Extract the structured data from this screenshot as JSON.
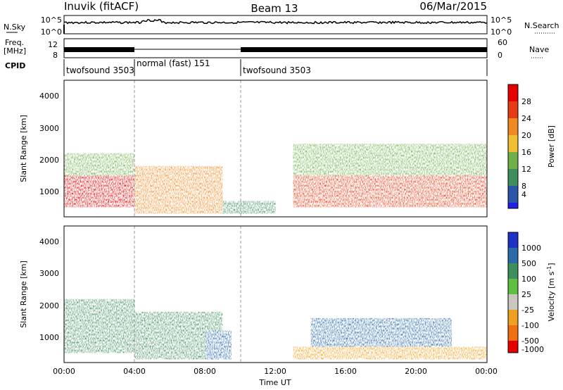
{
  "header": {
    "site": "Inuvik (fitACF)",
    "beam": "Beam 13",
    "date": "06/Mar/2015"
  },
  "top_panels": {
    "nsky_label": "N.Sky",
    "nsearch_label": "N.Search",
    "nsky_ticks": [
      "10^5",
      "10^0"
    ],
    "nsearch_ticks": [
      "10^5",
      "10^0"
    ],
    "freq_label_1": "Freq.",
    "freq_label_2": "[MHz]",
    "freq_ticks": [
      "12",
      "8"
    ],
    "nave_label": "Nave",
    "nave_ticks": [
      "60",
      "0"
    ],
    "cpid_label": "CPID",
    "cpid_segments": [
      {
        "label": "twofsound 3503",
        "start_hour": 0,
        "end_hour": 4
      },
      {
        "label": "normal (fast) 151",
        "start_hour": 4,
        "end_hour": 10
      },
      {
        "label": "twofsound 3503",
        "start_hour": 10,
        "end_hour": 24
      }
    ]
  },
  "power_panel": {
    "ylabel": "Slant Range [km]",
    "yticks": [
      "4000",
      "3000",
      "2000",
      "1000"
    ],
    "colorbar_label": "Power [dB]",
    "colorbar_ticks": [
      "28",
      "24",
      "20",
      "16",
      "12",
      "8",
      "4"
    ]
  },
  "velocity_panel": {
    "ylabel": "Slant Range [km]",
    "yticks": [
      "4000",
      "3000",
      "2000",
      "1000"
    ],
    "colorbar_label": "Velocity [m s",
    "colorbar_label_sup": "-1",
    "colorbar_label_end": "]",
    "colorbar_ticks": [
      "1000",
      "500",
      "100",
      "25",
      "-25",
      "-100",
      "-500",
      "-1000"
    ]
  },
  "xaxis": {
    "label": "Time UT",
    "ticks": [
      "00:00",
      "04:00",
      "08:00",
      "12:00",
      "16:00",
      "20:00",
      "00:00"
    ]
  },
  "chart_data": [
    {
      "type": "heatmap",
      "title": "Power",
      "xlabel": "Time UT",
      "ylabel": "Slant Range [km]",
      "x_range_hours": [
        0,
        24
      ],
      "y_range_km": [
        200,
        4500
      ],
      "colorbar": {
        "label": "Power [dB]",
        "range": [
          0,
          30
        ],
        "ticks": [
          4,
          8,
          12,
          16,
          20,
          24,
          28
        ]
      },
      "colors": [
        "#1e1ee6",
        "#2a55a8",
        "#3f8f5c",
        "#6fb04a",
        "#f0c030",
        "#f08a20",
        "#e83a14",
        "#e60000"
      ],
      "regions": [
        {
          "t_start": 0,
          "t_end": 4,
          "r_start": 500,
          "r_end": 1500,
          "power_db": 28
        },
        {
          "t_start": 0,
          "t_end": 4,
          "r_start": 1500,
          "r_end": 2200,
          "power_db": 14
        },
        {
          "t_start": 4,
          "t_end": 9,
          "r_start": 300,
          "r_end": 1800,
          "power_db": 22
        },
        {
          "t_start": 9,
          "t_end": 12,
          "r_start": 300,
          "r_end": 700,
          "power_db": 8
        },
        {
          "t_start": 13,
          "t_end": 24,
          "r_start": 500,
          "r_end": 1500,
          "power_db": 24
        },
        {
          "t_start": 13,
          "t_end": 24,
          "r_start": 1500,
          "r_end": 2500,
          "power_db": 12
        }
      ]
    },
    {
      "type": "heatmap",
      "title": "Velocity",
      "xlabel": "Time UT",
      "ylabel": "Slant Range [km]",
      "x_range_hours": [
        0,
        24
      ],
      "y_range_km": [
        200,
        4500
      ],
      "colorbar": {
        "label": "Velocity [m s-1]",
        "ticks": [
          1000,
          500,
          100,
          25,
          -25,
          -100,
          -500,
          -1000
        ]
      },
      "colors": [
        "#1e32c8",
        "#2a6aa8",
        "#3f8f5c",
        "#5fc040",
        "#c8c8c0",
        "#f0a020",
        "#f07010",
        "#e60000"
      ],
      "regions": [
        {
          "t_start": 0,
          "t_end": 4,
          "r_start": 500,
          "r_end": 2200,
          "velocity": 100
        },
        {
          "t_start": 4,
          "t_end": 9,
          "r_start": 300,
          "r_end": 1800,
          "velocity": 100
        },
        {
          "t_start": 8,
          "t_end": 9.5,
          "r_start": 300,
          "r_end": 1200,
          "velocity": 500
        },
        {
          "t_start": 14,
          "t_end": 22,
          "r_start": 600,
          "r_end": 1600,
          "velocity": 500
        },
        {
          "t_start": 13,
          "t_end": 24,
          "r_start": 300,
          "r_end": 700,
          "velocity": -100
        }
      ]
    }
  ]
}
